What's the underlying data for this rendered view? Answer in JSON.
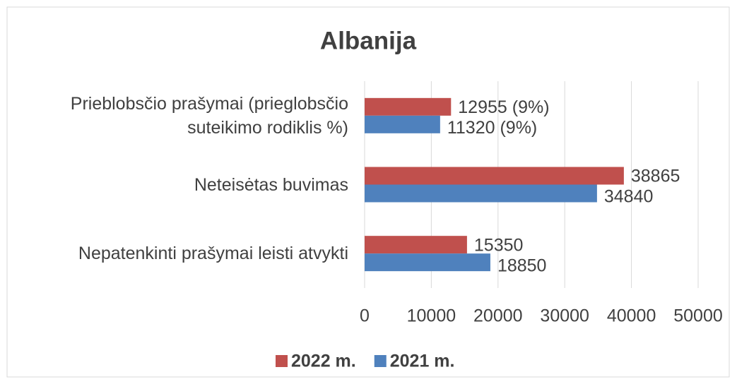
{
  "chart_data": {
    "type": "bar",
    "orientation": "horizontal",
    "title": "Albanija",
    "categories": [
      "Prieblobsčio prašymai (prieglobsčio suteikimo rodiklis %)",
      "Neteisėtas buvimas",
      "Nepatenkinti prašymai leisti atvykti"
    ],
    "series": [
      {
        "name": "2022 m.",
        "color": "#c0504d",
        "values": [
          12955,
          38865,
          15350
        ],
        "value_labels": [
          "12955 (9%)",
          "38865",
          "15350"
        ]
      },
      {
        "name": "2021 m.",
        "color": "#4f81bd",
        "values": [
          11320,
          34840,
          18850
        ],
        "value_labels": [
          "11320 (9%)",
          "34840",
          "18850"
        ]
      }
    ],
    "xlim": [
      0,
      50000
    ],
    "xticks": [
      0,
      10000,
      20000,
      30000,
      40000,
      50000
    ],
    "grid": true,
    "legend": "bottom"
  }
}
